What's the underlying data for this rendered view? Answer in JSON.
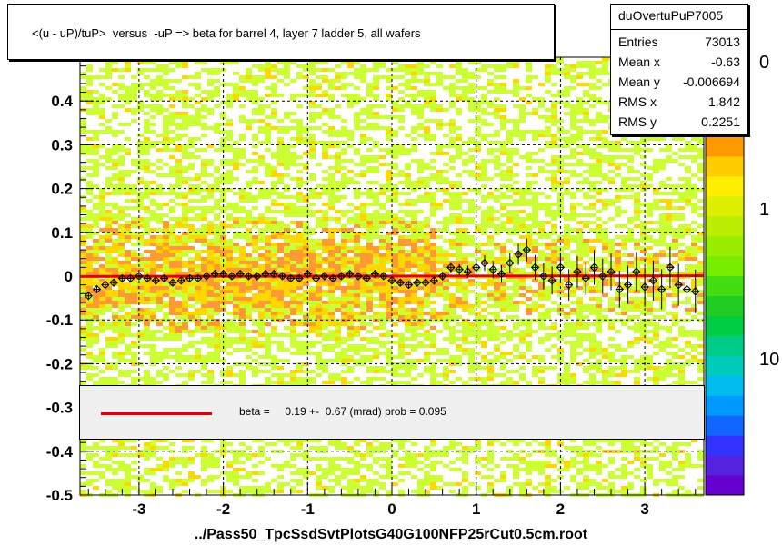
{
  "title": "<(u - uP)/tuP>  versus  -uP => beta for barrel 4, layer 7 ladder 5, all wafers",
  "footer": "../Pass50_TpcSsdSvtPlotsG40G100NFP25rCut0.5cm.root",
  "stats": {
    "name": "duOvertuPuP7005",
    "rows": [
      {
        "key": "Entries",
        "value": "73013"
      },
      {
        "key": "Mean x",
        "value": "-0.63"
      },
      {
        "key": "Mean y",
        "value": "-0.006694"
      },
      {
        "key": "RMS x",
        "value": "1.842"
      },
      {
        "key": "RMS y",
        "value": "0.2251"
      }
    ]
  },
  "fit_legend": "beta =     0.19 +-  0.67 (mrad) prob = 0.095",
  "palette_labels": [
    "10",
    "1",
    "0"
  ],
  "colors": {
    "fit_line": "#e00000",
    "fill_low": "#ccff33",
    "fill_mid": "#ffd700",
    "fill_high": "#ff9933",
    "axis": "#000000"
  },
  "chart_data": {
    "type": "heatmap",
    "title": "<(u - uP)/tuP>  versus  -uP => beta for barrel 4, layer 7 ladder 5, all wafers",
    "xlabel": "",
    "ylabel": "",
    "xlim": [
      -3.7,
      3.7
    ],
    "ylim": [
      -0.5,
      0.5
    ],
    "x_ticks": [
      "-3",
      "-2",
      "-1",
      "0",
      "1",
      "2",
      "3"
    ],
    "y_ticks": [
      "-0.5",
      "-0.4",
      "-0.3",
      "-0.2",
      "-0.1",
      "0",
      "0.1",
      "0.2",
      "0.3",
      "0.4"
    ],
    "x_tick_values": [
      -3,
      -2,
      -1,
      0,
      1,
      2,
      3
    ],
    "y_tick_values": [
      -0.5,
      -0.4,
      -0.3,
      -0.2,
      -0.1,
      0,
      0.1,
      0.2,
      0.3,
      0.4
    ],
    "grid": true,
    "fit": {
      "slope": 0.00019,
      "intercept": 0.0
    },
    "profile": {
      "x": [
        -3.6,
        -3.5,
        -3.4,
        -3.3,
        -3.2,
        -3.1,
        -3.0,
        -2.9,
        -2.8,
        -2.7,
        -2.6,
        -2.5,
        -2.4,
        -2.3,
        -2.2,
        -2.1,
        -2.0,
        -1.9,
        -1.8,
        -1.7,
        -1.6,
        -1.5,
        -1.4,
        -1.3,
        -1.2,
        -1.1,
        -1.0,
        -0.9,
        -0.8,
        -0.7,
        -0.6,
        -0.5,
        -0.4,
        -0.3,
        -0.2,
        -0.1,
        0.0,
        0.1,
        0.2,
        0.3,
        0.4,
        0.5,
        0.6,
        0.7,
        0.8,
        0.9,
        1.0,
        1.1,
        1.2,
        1.3,
        1.4,
        1.5,
        1.6,
        1.7,
        1.8,
        1.9,
        2.0,
        2.1,
        2.2,
        2.3,
        2.4,
        2.5,
        2.6,
        2.7,
        2.8,
        2.9,
        3.0,
        3.1,
        3.2,
        3.3,
        3.4,
        3.5,
        3.6
      ],
      "y": [
        -0.045,
        -0.03,
        -0.02,
        -0.015,
        -0.005,
        -0.005,
        0.0,
        -0.005,
        -0.01,
        -0.005,
        -0.015,
        -0.01,
        -0.005,
        -0.005,
        0.0,
        0.005,
        0.005,
        0.0,
        0.005,
        0.0,
        0.0,
        0.005,
        0.005,
        0.0,
        -0.005,
        -0.005,
        0.005,
        -0.005,
        0.0,
        -0.005,
        0.0,
        0.005,
        0.0,
        -0.005,
        0.005,
        0.0,
        -0.01,
        -0.015,
        -0.02,
        -0.015,
        -0.015,
        -0.01,
        0.0,
        0.02,
        0.015,
        0.01,
        0.02,
        0.03,
        0.015,
        0.005,
        0.03,
        0.05,
        0.06,
        0.02,
        0.0,
        -0.01,
        0.02,
        -0.02,
        0.01,
        -0.005,
        0.02,
        0.0,
        0.01,
        -0.03,
        -0.02,
        0.01,
        -0.025,
        -0.01,
        -0.03,
        0.02,
        -0.02,
        -0.03,
        -0.035
      ],
      "y_err": [
        0.01,
        0.008,
        0.008,
        0.007,
        0.007,
        0.006,
        0.006,
        0.006,
        0.006,
        0.006,
        0.006,
        0.006,
        0.006,
        0.006,
        0.006,
        0.006,
        0.006,
        0.006,
        0.006,
        0.006,
        0.006,
        0.006,
        0.006,
        0.006,
        0.006,
        0.006,
        0.006,
        0.006,
        0.006,
        0.006,
        0.006,
        0.006,
        0.006,
        0.006,
        0.006,
        0.006,
        0.008,
        0.008,
        0.008,
        0.008,
        0.008,
        0.009,
        0.01,
        0.012,
        0.012,
        0.014,
        0.015,
        0.018,
        0.02,
        0.02,
        0.022,
        0.024,
        0.026,
        0.028,
        0.03,
        0.032,
        0.034,
        0.036,
        0.036,
        0.038,
        0.04,
        0.04,
        0.042,
        0.042,
        0.044,
        0.045,
        0.045,
        0.046,
        0.046,
        0.047,
        0.048,
        0.048,
        0.05
      ]
    },
    "palette": {
      "orientation": "vertical",
      "position": "right",
      "scale": "log",
      "tick_labels": [
        "10",
        "1",
        "0"
      ]
    },
    "legend_placement": "bottom"
  }
}
